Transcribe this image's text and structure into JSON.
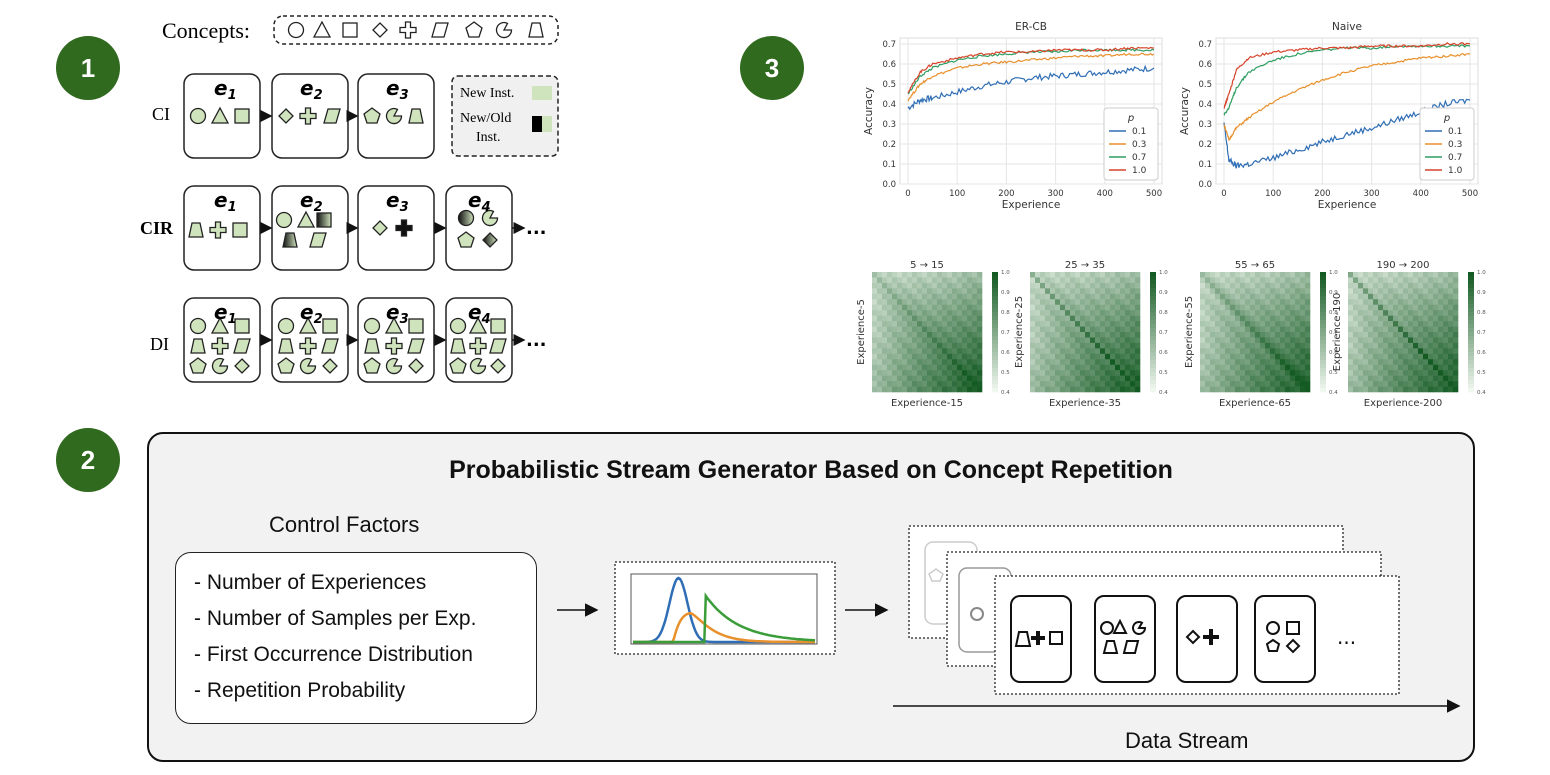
{
  "badges": {
    "one": "1",
    "two": "2",
    "three": "3"
  },
  "scenarios": {
    "concepts_label": "Concepts:",
    "rows": [
      {
        "label": "CI"
      },
      {
        "label": "CIR"
      },
      {
        "label": "DI"
      }
    ],
    "legend": {
      "new": "New Inst.",
      "new_old_1": "New/Old",
      "new_old_2": "Inst."
    },
    "ellipsis": "...",
    "exp_prefix": "e"
  },
  "generator": {
    "title": "Probabilistic Stream Generator Based on Concept Repetition",
    "factors_title": "Control Factors",
    "factors": [
      "- Number of Experiences",
      "- Number of Samples per Exp.",
      "- First Occurrence Distribution",
      "- Repetition Probability"
    ],
    "stream_label": "Data Stream",
    "stream_ellipsis": "..."
  },
  "colors": {
    "badge": "#2f6a1e",
    "shape_fill": "#cfe3bd",
    "p01": "#2f6eb5",
    "p03": "#e8902c",
    "p07": "#2e9e62",
    "p10": "#d6452c"
  },
  "chart_data": [
    {
      "type": "line",
      "title": "ER-CB",
      "xlabel": "Experience",
      "ylabel": "Accuracy",
      "xlim": [
        0,
        500
      ],
      "ylim": [
        0.0,
        0.7
      ],
      "xticks": [
        "0",
        "100",
        "200",
        "300",
        "400",
        "500"
      ],
      "yticks": [
        "0.0",
        "0.1",
        "0.2",
        "0.3",
        "0.4",
        "0.5",
        "0.6",
        "0.7"
      ],
      "legend_title": "p",
      "legend_position": "lower-right",
      "grid": true,
      "x": [
        0,
        25,
        50,
        100,
        150,
        200,
        250,
        300,
        350,
        400,
        450,
        500
      ],
      "series": [
        {
          "name": "0.1",
          "values": [
            0.38,
            0.42,
            0.43,
            0.46,
            0.49,
            0.51,
            0.53,
            0.54,
            0.55,
            0.56,
            0.57,
            0.58
          ]
        },
        {
          "name": "0.3",
          "values": [
            0.42,
            0.5,
            0.54,
            0.58,
            0.6,
            0.61,
            0.62,
            0.63,
            0.64,
            0.64,
            0.65,
            0.65
          ]
        },
        {
          "name": "0.7",
          "values": [
            0.45,
            0.54,
            0.58,
            0.62,
            0.64,
            0.65,
            0.66,
            0.66,
            0.67,
            0.67,
            0.67,
            0.67
          ]
        },
        {
          "name": "1.0",
          "values": [
            0.46,
            0.56,
            0.6,
            0.63,
            0.65,
            0.66,
            0.66,
            0.67,
            0.67,
            0.67,
            0.68,
            0.68
          ]
        }
      ]
    },
    {
      "type": "line",
      "title": "Naive",
      "xlabel": "Experience",
      "ylabel": "Accuracy",
      "xlim": [
        0,
        500
      ],
      "ylim": [
        0.0,
        0.7
      ],
      "xticks": [
        "0",
        "100",
        "200",
        "300",
        "400",
        "500"
      ],
      "yticks": [
        "0.0",
        "0.1",
        "0.2",
        "0.3",
        "0.4",
        "0.5",
        "0.6",
        "0.7"
      ],
      "legend_title": "p",
      "legend_position": "lower-right",
      "grid": true,
      "x": [
        0,
        10,
        25,
        50,
        100,
        150,
        200,
        250,
        300,
        350,
        400,
        450,
        500
      ],
      "series": [
        {
          "name": "0.1",
          "values": [
            0.3,
            0.12,
            0.09,
            0.1,
            0.13,
            0.17,
            0.21,
            0.25,
            0.28,
            0.32,
            0.36,
            0.4,
            0.42
          ]
        },
        {
          "name": "0.3",
          "values": [
            0.3,
            0.22,
            0.28,
            0.33,
            0.41,
            0.47,
            0.52,
            0.56,
            0.59,
            0.61,
            0.63,
            0.64,
            0.65
          ]
        },
        {
          "name": "0.7",
          "values": [
            0.35,
            0.38,
            0.48,
            0.56,
            0.62,
            0.65,
            0.67,
            0.68,
            0.68,
            0.69,
            0.69,
            0.69,
            0.69
          ]
        },
        {
          "name": "1.0",
          "values": [
            0.38,
            0.45,
            0.57,
            0.63,
            0.66,
            0.67,
            0.68,
            0.68,
            0.69,
            0.69,
            0.69,
            0.7,
            0.7
          ]
        }
      ]
    },
    {
      "type": "heatmap",
      "title": "5 → 15",
      "xlabel": "Experience-15",
      "ylabel": "Experience-5",
      "colorbar_ticks": [
        "0.4",
        "0.5",
        "0.6",
        "0.7",
        "0.8",
        "0.9",
        "1.0"
      ]
    },
    {
      "type": "heatmap",
      "title": "25 → 35",
      "xlabel": "Experience-35",
      "ylabel": "Experience-25",
      "colorbar_ticks": [
        "0.4",
        "0.5",
        "0.6",
        "0.7",
        "0.8",
        "0.9",
        "1.0"
      ]
    },
    {
      "type": "heatmap",
      "title": "55 → 65",
      "xlabel": "Experience-65",
      "ylabel": "Experience-55",
      "colorbar_ticks": [
        "0.4",
        "0.5",
        "0.6",
        "0.7",
        "0.8",
        "0.9",
        "1.0"
      ]
    },
    {
      "type": "heatmap",
      "title": "190 → 200",
      "xlabel": "Experience-200",
      "ylabel": "Experience-190",
      "colorbar_ticks": [
        "0.4",
        "0.5",
        "0.6",
        "0.7",
        "0.8",
        "0.9",
        "1.0"
      ]
    }
  ]
}
